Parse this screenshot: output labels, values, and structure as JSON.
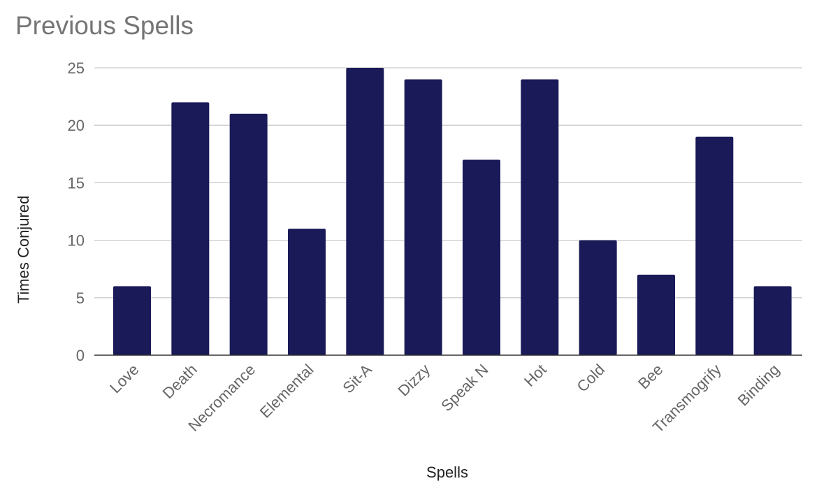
{
  "chart_data": {
    "type": "bar",
    "title": "Previous Spells",
    "xlabel": "Spells",
    "ylabel": "Times Conjured",
    "categories": [
      "Love",
      "Death",
      "Necromance",
      "Elemental",
      "Sit-A",
      "Dizzy",
      "Speak N",
      "Hot",
      "Cold",
      "Bee",
      "Transmogrify",
      "Binding"
    ],
    "series": [
      {
        "values": [
          6,
          22,
          21,
          11,
          25,
          24,
          17,
          24,
          10,
          7,
          19,
          6
        ]
      }
    ],
    "ylim": [
      0,
      25
    ],
    "yticks": [
      0,
      5,
      10,
      15,
      20,
      25
    ],
    "grid": true,
    "legend": "none",
    "colors": {
      "bar": "#1a1a59",
      "grid": "#cccccc",
      "axis": "#333333",
      "title": "#757575",
      "tick_label": "#666666",
      "axis_label": "#222222"
    }
  }
}
